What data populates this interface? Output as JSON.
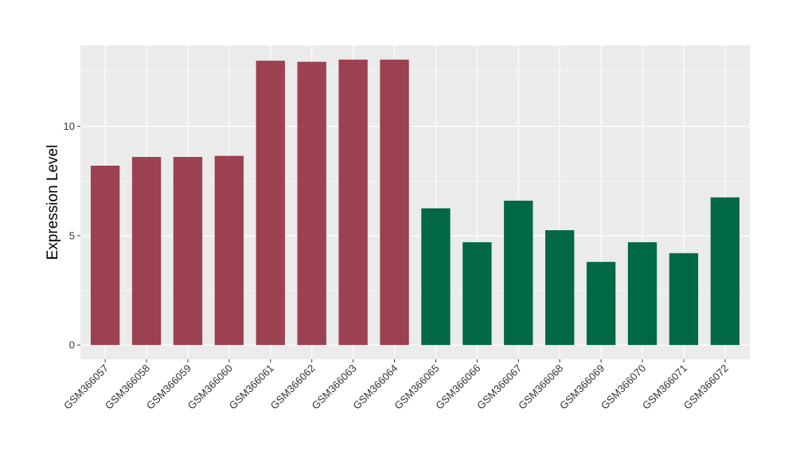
{
  "chart_data": {
    "type": "bar",
    "title": "",
    "xlabel": "",
    "ylabel": "Expression Level",
    "categories": [
      "GSM366057",
      "GSM366058",
      "GSM366059",
      "GSM366060",
      "GSM366061",
      "GSM366062",
      "GSM366063",
      "GSM366064",
      "GSM366065",
      "GSM366066",
      "GSM366067",
      "GSM366068",
      "GSM366069",
      "GSM366070",
      "GSM366071",
      "GSM366072"
    ],
    "values": [
      8.2,
      8.6,
      8.6,
      8.65,
      13.0,
      12.95,
      13.05,
      13.05,
      6.25,
      4.7,
      6.6,
      5.25,
      3.8,
      4.7,
      4.2,
      6.75
    ],
    "group_colors": [
      "#9B4150",
      "#9B4150",
      "#9B4150",
      "#9B4150",
      "#9B4150",
      "#9B4150",
      "#9B4150",
      "#9B4150",
      "#006846",
      "#006846",
      "#006846",
      "#006846",
      "#006846",
      "#006846",
      "#006846",
      "#006846"
    ],
    "ylim": [
      -0.65,
      13.7
    ],
    "yticks": [
      0,
      5,
      10
    ],
    "grid": true,
    "legend": "none",
    "colors": {
      "panel_background": "#EBEBEB",
      "grid_major": "#FFFFFF",
      "group_a": "#9B4150",
      "group_b": "#006846"
    }
  }
}
